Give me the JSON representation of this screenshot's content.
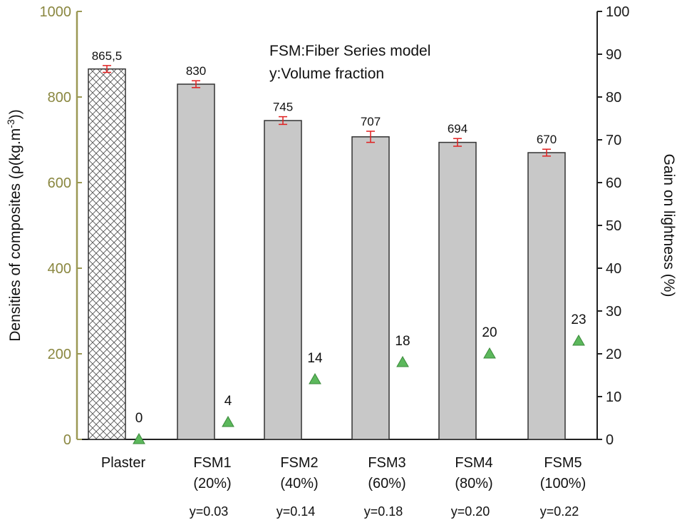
{
  "chart_data": {
    "type": "bar",
    "categories": [
      {
        "label": "Plaster",
        "sub": "",
        "yfrac": ""
      },
      {
        "label": "FSM1",
        "sub": "(20%)",
        "yfrac": "y=0.03"
      },
      {
        "label": "FSM2",
        "sub": "(40%)",
        "yfrac": "y=0.14"
      },
      {
        "label": "FSM3",
        "sub": "(60%)",
        "yfrac": "y=0.18"
      },
      {
        "label": "FSM4",
        "sub": "(80%)",
        "yfrac": "y=0.20"
      },
      {
        "label": "FSM5",
        "sub": "(100%)",
        "yfrac": "y=0.22"
      }
    ],
    "series": [
      {
        "name": "Density",
        "axis": "left",
        "values": [
          865.5,
          830,
          745,
          707,
          694,
          670
        ],
        "labels": [
          "865,5",
          "830",
          "745",
          "707",
          "694",
          "670"
        ],
        "errors": [
          8,
          8,
          9,
          13,
          9,
          8
        ],
        "color": "#c8c8c8",
        "first_bar_pattern": "crosshatch"
      },
      {
        "name": "Gain on lightness",
        "axis": "right",
        "marker": "triangle",
        "values": [
          0,
          4,
          14,
          18,
          20,
          23
        ],
        "labels": [
          "0",
          "4",
          "14",
          "18",
          "20",
          "23"
        ],
        "color": "#5cb85c"
      }
    ],
    "ylabel_left_parts": {
      "before": "Densities of composites (ρ(kg.m",
      "sup": "-3",
      "after": "))"
    },
    "ylabel_right": "Gain on lightness (%)",
    "ylim_left": [
      0,
      1000
    ],
    "yticks_left": [
      "0",
      "200",
      "400",
      "600",
      "800",
      "1000"
    ],
    "ylim_right": [
      0,
      100
    ],
    "yticks_right": [
      "0",
      "10",
      "20",
      "30",
      "40",
      "50",
      "60",
      "70",
      "80",
      "90",
      "100"
    ],
    "annotations": [
      "FSM:Fiber Series model",
      "y:Volume fraction"
    ],
    "colors": {
      "left_axis": "#9b9854",
      "error_bar": "#e02020",
      "bar_edge": "#333333"
    }
  }
}
